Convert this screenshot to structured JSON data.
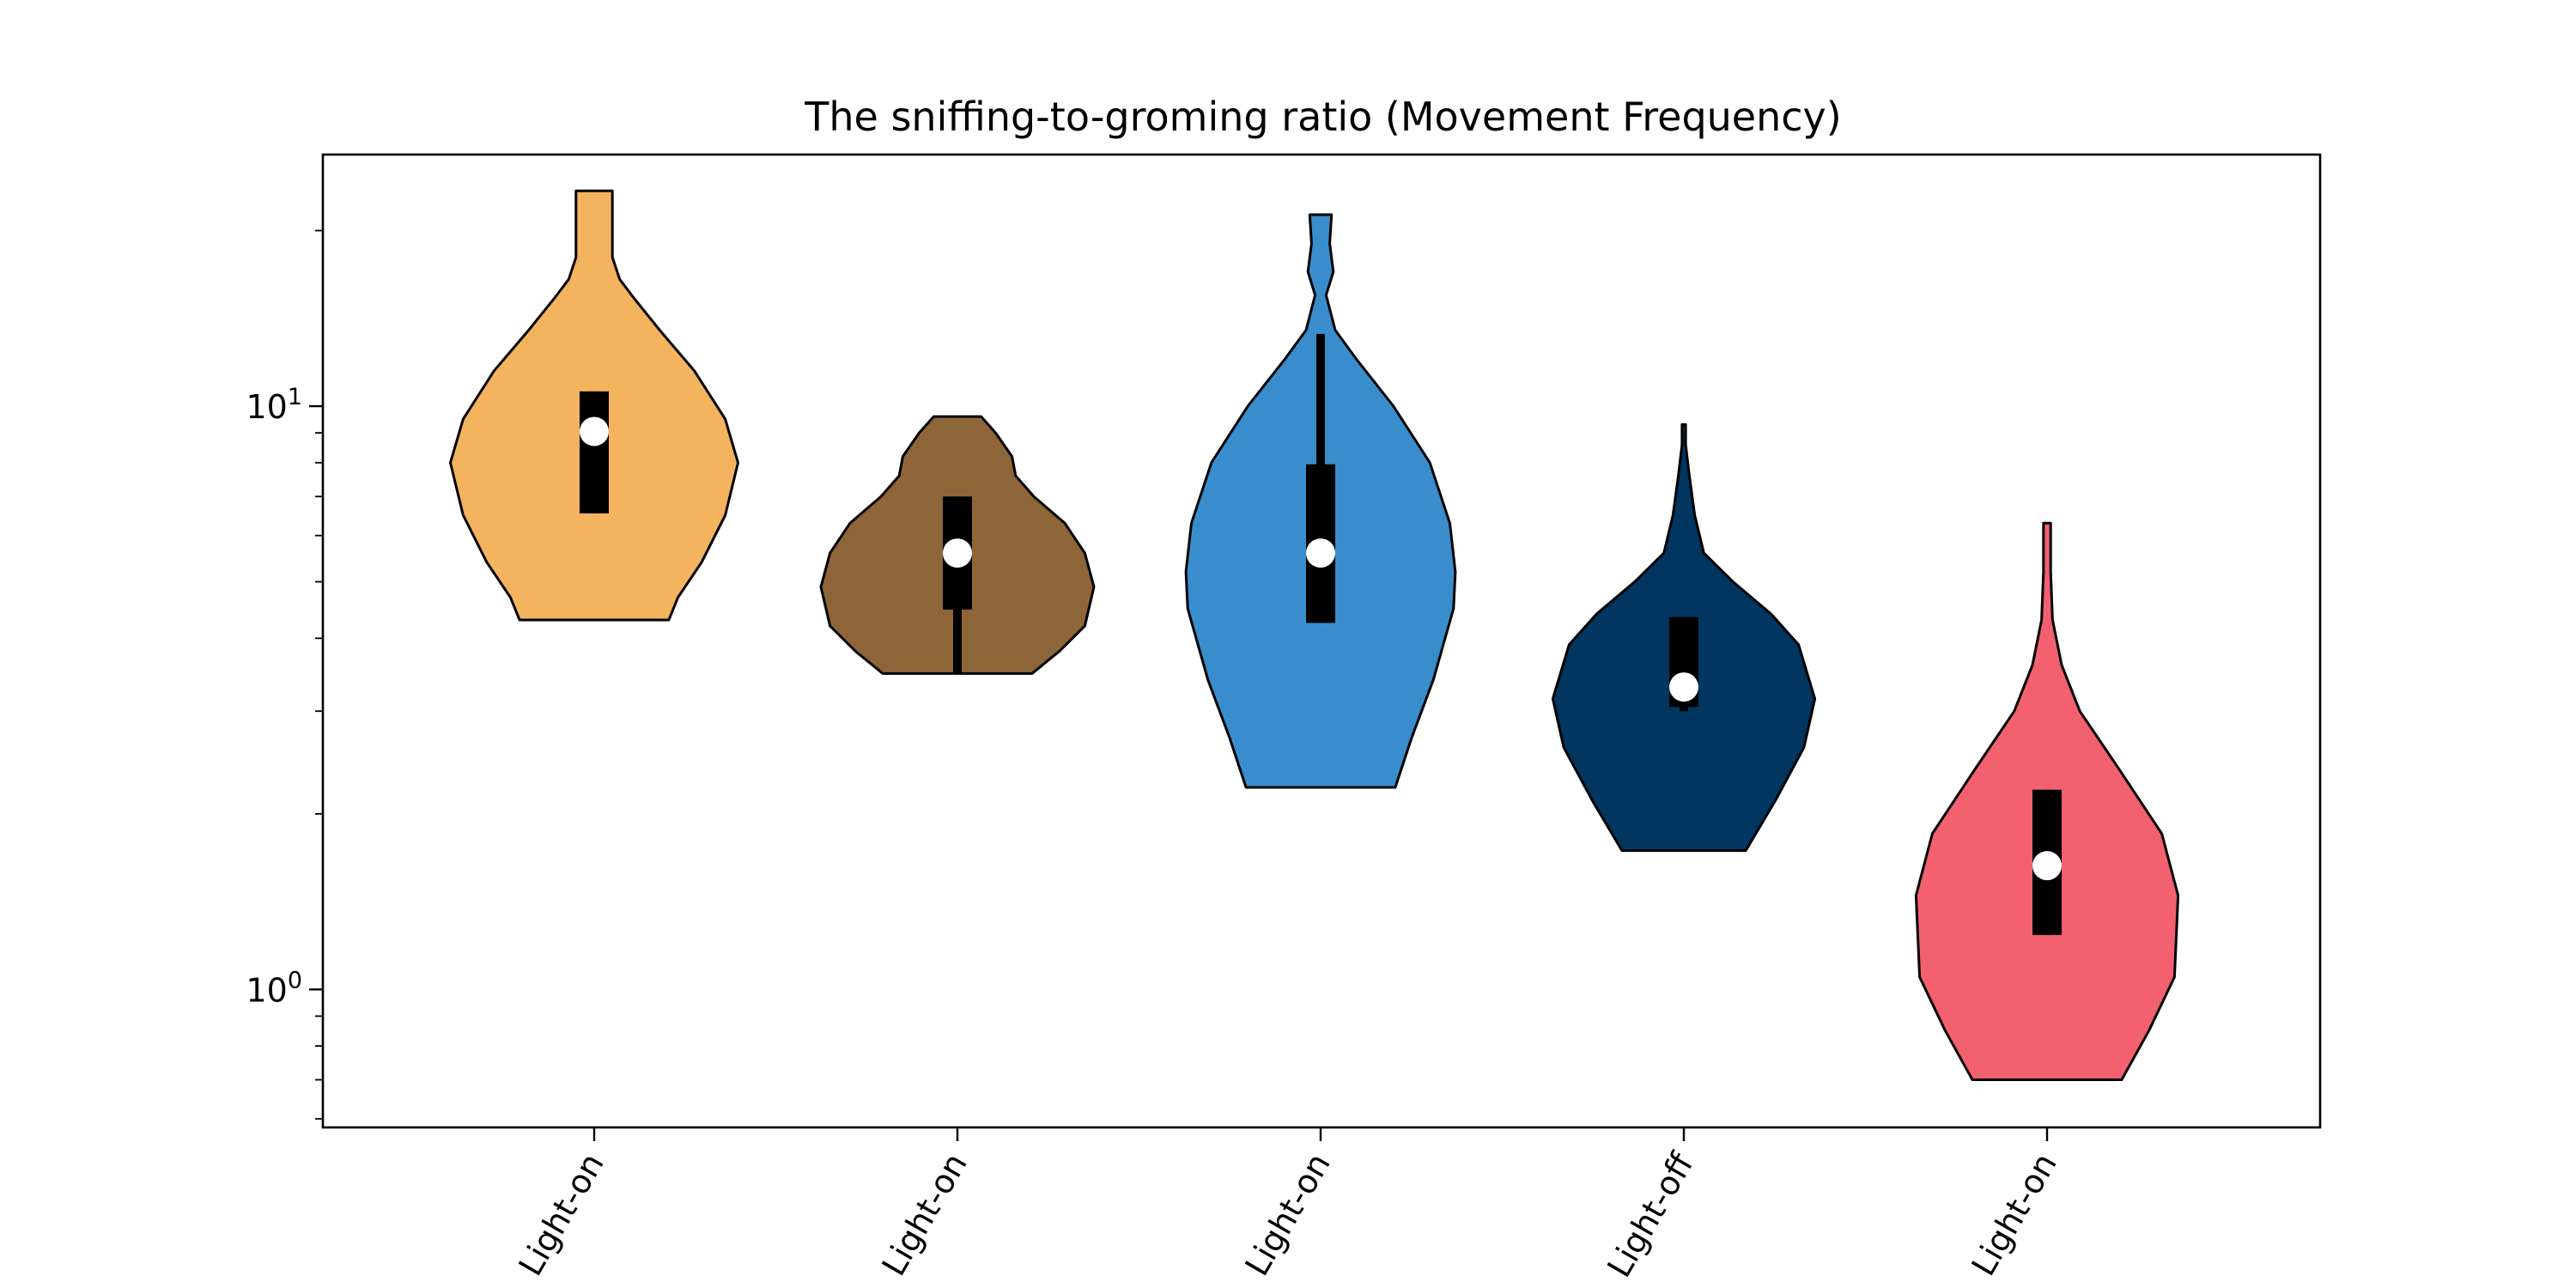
{
  "chart_data": {
    "type": "violin",
    "title": "The sniffing-to-groming ratio (Movement Frequency)",
    "xlabel": "",
    "ylabel": "",
    "yscale": "log",
    "ylim": [
      0.58,
      27
    ],
    "yticks": [
      {
        "value": 1,
        "base": "10",
        "exp": "0"
      },
      {
        "value": 10,
        "base": "10",
        "exp": "1"
      }
    ],
    "categories": [
      "Light-on",
      "Light-on",
      "Light-on",
      "Light-off",
      "Light-on"
    ],
    "series": [
      {
        "color": "#F4B35F",
        "min": 4.3,
        "max": 23.4,
        "q1": 6.55,
        "median": 9.05,
        "q3": 10.6,
        "whisker_low": 6.55,
        "whisker_high": 10.6,
        "density": [
          [
            4.3,
            0.41
          ],
          [
            4.7,
            0.46
          ],
          [
            5.4,
            0.59
          ],
          [
            6.5,
            0.72
          ],
          [
            8.0,
            0.79
          ],
          [
            9.5,
            0.72
          ],
          [
            11.5,
            0.55
          ],
          [
            13.5,
            0.36
          ],
          [
            15.3,
            0.22
          ],
          [
            16.5,
            0.14
          ],
          [
            18.0,
            0.1
          ],
          [
            20.0,
            0.1
          ],
          [
            23.4,
            0.1
          ]
        ]
      },
      {
        "color": "#8E6538",
        "min": 3.48,
        "max": 9.6,
        "q1": 4.48,
        "median": 5.6,
        "q3": 7.0,
        "whisker_low": 3.48,
        "whisker_high": 7.0,
        "density": [
          [
            3.48,
            0.41
          ],
          [
            3.8,
            0.56
          ],
          [
            4.2,
            0.7
          ],
          [
            4.9,
            0.75
          ],
          [
            5.6,
            0.7
          ],
          [
            6.3,
            0.59
          ],
          [
            7.0,
            0.42
          ],
          [
            7.6,
            0.32
          ],
          [
            8.2,
            0.3
          ],
          [
            9.0,
            0.21
          ],
          [
            9.6,
            0.13
          ]
        ]
      },
      {
        "color": "#3A8DCC",
        "min": 2.22,
        "max": 21.3,
        "q1": 4.25,
        "median": 5.6,
        "q3": 7.95,
        "whisker_low": 4.25,
        "whisker_high": 13.3,
        "density": [
          [
            2.22,
            0.41
          ],
          [
            2.7,
            0.5
          ],
          [
            3.4,
            0.62
          ],
          [
            4.5,
            0.73
          ],
          [
            5.2,
            0.74
          ],
          [
            6.3,
            0.71
          ],
          [
            8.0,
            0.6
          ],
          [
            10.0,
            0.4
          ],
          [
            12.0,
            0.2
          ],
          [
            13.5,
            0.08
          ],
          [
            15.5,
            0.03
          ],
          [
            17.0,
            0.07
          ],
          [
            19.0,
            0.05
          ],
          [
            21.3,
            0.06
          ]
        ]
      },
      {
        "color": "#003660",
        "min": 1.73,
        "max": 9.3,
        "q1": 3.05,
        "median": 3.3,
        "q3": 4.35,
        "whisker_low": 3.0,
        "whisker_high": 4.35,
        "density": [
          [
            1.73,
            0.34
          ],
          [
            2.1,
            0.5
          ],
          [
            2.6,
            0.66
          ],
          [
            3.15,
            0.72
          ],
          [
            3.9,
            0.63
          ],
          [
            4.4,
            0.48
          ],
          [
            5.0,
            0.27
          ],
          [
            5.6,
            0.11
          ],
          [
            6.5,
            0.06
          ],
          [
            7.6,
            0.03
          ],
          [
            8.6,
            0.01
          ],
          [
            9.3,
            0.01
          ]
        ]
      },
      {
        "color": "#F36070",
        "min": 0.7,
        "max": 6.3,
        "q1": 1.24,
        "median": 1.63,
        "q3": 2.2,
        "whisker_low": 1.24,
        "whisker_high": 2.2,
        "density": [
          [
            0.7,
            0.41
          ],
          [
            0.85,
            0.56
          ],
          [
            1.05,
            0.7
          ],
          [
            1.45,
            0.72
          ],
          [
            1.85,
            0.63
          ],
          [
            2.4,
            0.39
          ],
          [
            3.0,
            0.18
          ],
          [
            3.6,
            0.08
          ],
          [
            4.3,
            0.03
          ],
          [
            5.2,
            0.02
          ],
          [
            6.3,
            0.02
          ]
        ]
      }
    ]
  }
}
